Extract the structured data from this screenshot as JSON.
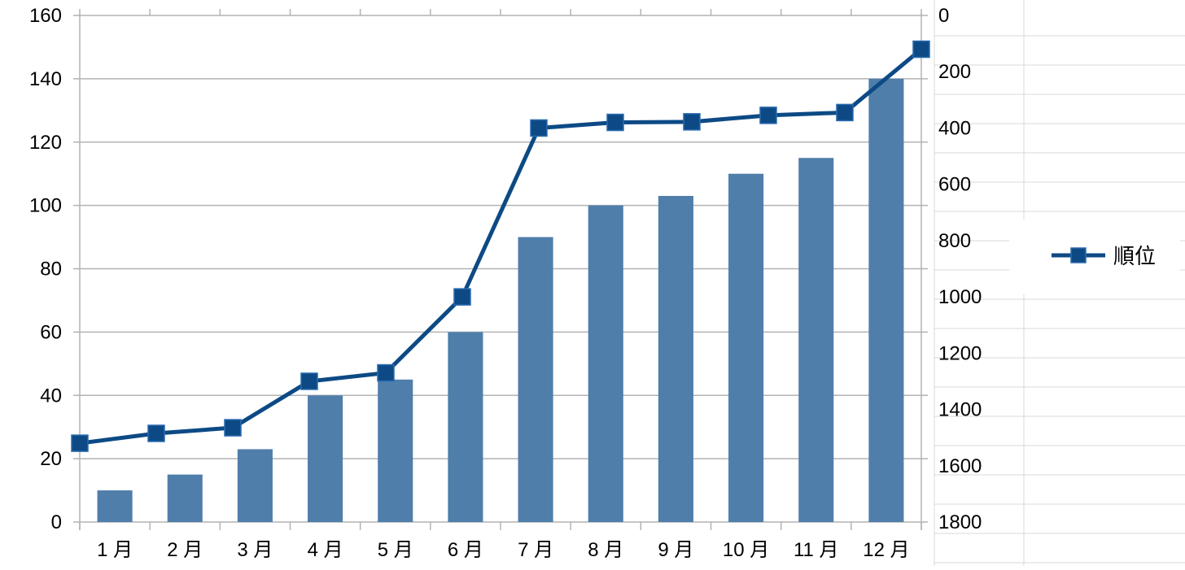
{
  "chart_data": {
    "type": "bar+line",
    "title": "",
    "xlabel": "",
    "categories": [
      "1 月",
      "2 月",
      "3 月",
      "4 月",
      "5 月",
      "6 月",
      "7 月",
      "8 月",
      "9 月",
      "10 月",
      "11 月",
      "12 月"
    ],
    "y_left": {
      "range": [
        0,
        160
      ],
      "ticks": [
        0,
        20,
        40,
        60,
        80,
        100,
        120,
        140,
        160
      ]
    },
    "y_right": {
      "range": [
        0,
        1800
      ],
      "reversed": true,
      "ticks": [
        0,
        200,
        400,
        600,
        800,
        1000,
        1200,
        1400,
        1600,
        1800
      ]
    },
    "series": [
      {
        "kind": "bar",
        "axis": "left",
        "values": [
          10,
          15,
          23,
          40,
          45,
          60,
          90,
          100,
          103,
          110,
          115,
          140
        ],
        "color": "#4f7eab"
      },
      {
        "kind": "line",
        "axis": "right",
        "name": "順位",
        "marker": "square",
        "values": [
          1520,
          1485,
          1465,
          1300,
          1270,
          1000,
          400,
          380,
          378,
          355,
          345,
          120
        ],
        "color": "#0d4a85"
      }
    ],
    "grid": {
      "horizontal": true
    },
    "legend": {
      "position": "right",
      "entries": [
        "順位"
      ]
    }
  }
}
